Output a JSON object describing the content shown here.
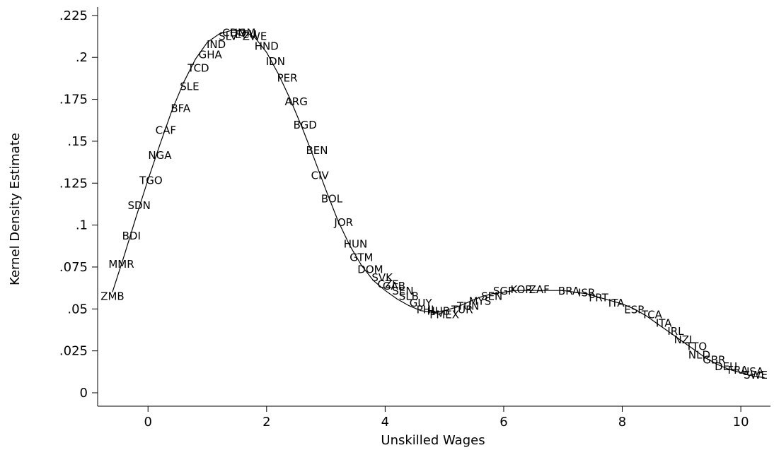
{
  "chart_data": {
    "type": "line",
    "title": "",
    "xlabel": "Unskilled Wages",
    "ylabel": "Kernel Density Estimate",
    "xlim": [
      -0.85,
      10.5
    ],
    "ylim": [
      -0.008,
      0.23
    ],
    "xticks": [
      0,
      2,
      4,
      6,
      8,
      10
    ],
    "xtick_labels": [
      "0",
      "2",
      "4",
      "6",
      "8",
      "10"
    ],
    "yticks": [
      0,
      0.025,
      0.05,
      0.075,
      0.1,
      0.125,
      0.15,
      0.175,
      0.2,
      0.225
    ],
    "ytick_labels": [
      "0",
      ".025",
      ".05",
      ".075",
      ".1",
      ".125",
      ".15",
      ".175",
      ".2",
      ".225"
    ],
    "grid": false,
    "legend": "none",
    "curve": {
      "x": [
        -0.6,
        -0.4,
        -0.2,
        0,
        0.2,
        0.4,
        0.6,
        0.8,
        1.0,
        1.2,
        1.4,
        1.6,
        1.8,
        2.0,
        2.2,
        2.4,
        2.6,
        2.8,
        3.0,
        3.2,
        3.4,
        3.6,
        3.8,
        4.0,
        4.2,
        4.4,
        4.6,
        4.8,
        5.0,
        5.2,
        5.4,
        5.6,
        5.8,
        6.0,
        6.2,
        6.4,
        6.6,
        6.8,
        7.0,
        7.2,
        7.4,
        7.6,
        7.8,
        8.0,
        8.2,
        8.4,
        8.6,
        8.8,
        9.0,
        9.2,
        9.4,
        9.6,
        9.8,
        10.0,
        10.2,
        10.4
      ],
      "y": [
        0.06,
        0.082,
        0.105,
        0.127,
        0.148,
        0.168,
        0.185,
        0.199,
        0.209,
        0.214,
        0.216,
        0.216,
        0.212,
        0.203,
        0.19,
        0.175,
        0.158,
        0.14,
        0.121,
        0.103,
        0.088,
        0.076,
        0.067,
        0.061,
        0.056,
        0.052,
        0.049,
        0.048,
        0.049,
        0.051,
        0.054,
        0.057,
        0.059,
        0.06,
        0.061,
        0.061,
        0.061,
        0.061,
        0.061,
        0.06,
        0.059,
        0.057,
        0.055,
        0.053,
        0.05,
        0.046,
        0.041,
        0.036,
        0.031,
        0.026,
        0.021,
        0.017,
        0.014,
        0.012,
        0.01,
        0.009
      ]
    },
    "point_labels": [
      {
        "label": "ZMB",
        "x": -0.6,
        "y": 0.058
      },
      {
        "label": "MMR",
        "x": -0.45,
        "y": 0.077
      },
      {
        "label": "BDI",
        "x": -0.28,
        "y": 0.094
      },
      {
        "label": "SDN",
        "x": -0.15,
        "y": 0.112
      },
      {
        "label": "TGO",
        "x": 0.05,
        "y": 0.127
      },
      {
        "label": "NGA",
        "x": 0.2,
        "y": 0.142
      },
      {
        "label": "CAF",
        "x": 0.3,
        "y": 0.157
      },
      {
        "label": "BFA",
        "x": 0.55,
        "y": 0.17
      },
      {
        "label": "SLE",
        "x": 0.7,
        "y": 0.183
      },
      {
        "label": "TCD",
        "x": 0.85,
        "y": 0.194
      },
      {
        "label": "GHA",
        "x": 1.05,
        "y": 0.202
      },
      {
        "label": "IND",
        "x": 1.15,
        "y": 0.208
      },
      {
        "label": "SLV",
        "x": 1.35,
        "y": 0.213
      },
      {
        "label": "CHN",
        "x": 1.45,
        "y": 0.215
      },
      {
        "label": "DOM",
        "x": 1.6,
        "y": 0.215
      },
      {
        "label": "ECU",
        "x": 1.65,
        "y": 0.214
      },
      {
        "label": "ZWE",
        "x": 1.8,
        "y": 0.213
      },
      {
        "label": "HND",
        "x": 2.0,
        "y": 0.207
      },
      {
        "label": "IDN",
        "x": 2.15,
        "y": 0.198
      },
      {
        "label": "PER",
        "x": 2.35,
        "y": 0.188
      },
      {
        "label": "ARG",
        "x": 2.5,
        "y": 0.174
      },
      {
        "label": "BGD",
        "x": 2.65,
        "y": 0.16
      },
      {
        "label": "BEN",
        "x": 2.85,
        "y": 0.145
      },
      {
        "label": "CIV",
        "x": 2.9,
        "y": 0.13
      },
      {
        "label": "BOL",
        "x": 3.1,
        "y": 0.116
      },
      {
        "label": "JOR",
        "x": 3.3,
        "y": 0.102
      },
      {
        "label": "HUN",
        "x": 3.5,
        "y": 0.089
      },
      {
        "label": "GTM",
        "x": 3.6,
        "y": 0.081
      },
      {
        "label": "DOM",
        "x": 3.75,
        "y": 0.074
      },
      {
        "label": "SVK",
        "x": 3.95,
        "y": 0.069
      },
      {
        "label": "CZE",
        "x": 4.05,
        "y": 0.065
      },
      {
        "label": "GAB",
        "x": 4.15,
        "y": 0.064
      },
      {
        "label": "SEN",
        "x": 4.3,
        "y": 0.061
      },
      {
        "label": "SLB",
        "x": 4.4,
        "y": 0.058
      },
      {
        "label": "GUY",
        "x": 4.6,
        "y": 0.054
      },
      {
        "label": "PHL",
        "x": 4.7,
        "y": 0.05
      },
      {
        "label": "HUB",
        "x": 4.9,
        "y": 0.049
      },
      {
        "label": "PMEX",
        "x": 5.0,
        "y": 0.047
      },
      {
        "label": "TUR",
        "x": 5.3,
        "y": 0.05
      },
      {
        "label": "TUN",
        "x": 5.4,
        "y": 0.052
      },
      {
        "label": "MYS",
        "x": 5.6,
        "y": 0.055
      },
      {
        "label": "SEN",
        "x": 5.8,
        "y": 0.058
      },
      {
        "label": "SGP",
        "x": 6.0,
        "y": 0.061
      },
      {
        "label": "KOR",
        "x": 6.3,
        "y": 0.062
      },
      {
        "label": "ZAF",
        "x": 6.6,
        "y": 0.062
      },
      {
        "label": "BRA",
        "x": 7.1,
        "y": 0.061
      },
      {
        "label": "ISR",
        "x": 7.4,
        "y": 0.06
      },
      {
        "label": "PRT",
        "x": 7.6,
        "y": 0.057
      },
      {
        "label": "ITA",
        "x": 7.9,
        "y": 0.054
      },
      {
        "label": "ESP",
        "x": 8.2,
        "y": 0.05
      },
      {
        "label": "TCA",
        "x": 8.5,
        "y": 0.047
      },
      {
        "label": "ITA",
        "x": 8.7,
        "y": 0.042
      },
      {
        "label": "IRL",
        "x": 8.9,
        "y": 0.037
      },
      {
        "label": "NZL",
        "x": 9.05,
        "y": 0.032
      },
      {
        "label": "TTO",
        "x": 9.25,
        "y": 0.028
      },
      {
        "label": "NLD",
        "x": 9.3,
        "y": 0.023
      },
      {
        "label": "GBR",
        "x": 9.55,
        "y": 0.02
      },
      {
        "label": "DEU",
        "x": 9.75,
        "y": 0.016
      },
      {
        "label": "FRA",
        "x": 9.95,
        "y": 0.014
      },
      {
        "label": "USA",
        "x": 10.2,
        "y": 0.013
      },
      {
        "label": "SWE",
        "x": 10.25,
        "y": 0.011
      }
    ]
  }
}
